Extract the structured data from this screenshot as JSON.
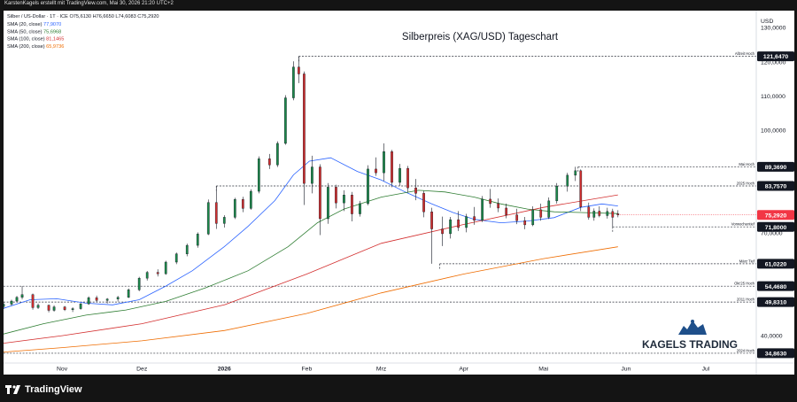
{
  "header": {
    "text": "KarstenKagels erstellt mit TradingView.com, Mai 30, 2026 21:20 UTC+2"
  },
  "legend": {
    "symbol_line": "Silber / US-Dollar · 1T · ICE  O75,6130  H76,6650  L74,6083  C75,2920",
    "sma20": {
      "label": "SMA (20, close)",
      "value": "77,9070",
      "color": "#2962ff"
    },
    "sma50": {
      "label": "SMA (50, close)",
      "value": "75,6968",
      "color": "#2e7d32"
    },
    "sma100": {
      "label": "SMA (100, close)",
      "value": "81,1465",
      "color": "#d32f2f"
    },
    "sma200": {
      "label": "SMA (200, close)",
      "value": "65,9736",
      "color": "#ef6c00"
    }
  },
  "currency": "USD",
  "footer": {
    "brand": "TradingView"
  },
  "watermark": {
    "brand": "KAGELS TRADING"
  },
  "chart_data": {
    "type": "candlestick",
    "title": "Silberpreis (XAG/USD) Tageschart",
    "y_axis": {
      "range": [
        32000,
        135000
      ],
      "ticks": [
        {
          "value": 130000,
          "label": "130,0000"
        },
        {
          "value": 120000,
          "label": "120,0000"
        },
        {
          "value": 110000,
          "label": "110,0000"
        },
        {
          "value": 100000,
          "label": "100,0000"
        },
        {
          "value": 70000,
          "label": "70,0000"
        },
        {
          "value": 50000,
          "label": "50,0000"
        },
        {
          "value": 40000,
          "label": "40,0000"
        }
      ]
    },
    "x_axis": {
      "start_date": "2025-10-10",
      "end_date": "2026-07-20",
      "ticks": [
        {
          "date": "2025-11-01",
          "label": "Nov",
          "bold": false
        },
        {
          "date": "2025-12-01",
          "label": "Dez",
          "bold": false
        },
        {
          "date": "2026-01-01",
          "label": "2026",
          "bold": true
        },
        {
          "date": "2026-02-01",
          "label": "Feb",
          "bold": false
        },
        {
          "date": "2026-03-01",
          "label": "Mrz",
          "bold": false
        },
        {
          "date": "2026-04-01",
          "label": "Apr",
          "bold": false
        },
        {
          "date": "2026-05-01",
          "label": "Mai",
          "bold": false
        },
        {
          "date": "2026-06-01",
          "label": "Jun",
          "bold": false
        },
        {
          "date": "2026-07-01",
          "label": "Jul",
          "bold": false
        }
      ]
    },
    "levels": [
      {
        "name": "Allzeit Hoch",
        "value": 121647,
        "label": "121,6470",
        "from": "2026-01-29"
      },
      {
        "name": "Mai Hoch",
        "value": 89369,
        "label": "89,3690",
        "from": "2026-05-14"
      },
      {
        "name": "2025 Hoch",
        "value": 83757,
        "label": "83,7570",
        "from": "2025-12-29"
      },
      {
        "name": "Vorwochentief",
        "value": 71800,
        "label": "71,8000",
        "from": "2026-05-27"
      },
      {
        "name": "März Tief",
        "value": 61022,
        "label": "61,0220",
        "from": "2026-03-23"
      },
      {
        "name": "Okt'25 Hoch",
        "value": 54468,
        "label": "54,4680",
        "from": "2025-10-10"
      },
      {
        "name": "2011 Hoch",
        "value": 49831,
        "label": "49,8310",
        "from": "2025-10-10"
      },
      {
        "name": "2024 Hoch",
        "value": 34863,
        "label": "34,8630",
        "from": "2025-10-10"
      }
    ],
    "last_price": {
      "value": 75292,
      "label": "75,2920",
      "color": "#f23645"
    },
    "series": [
      {
        "name": "SMA (20, close)",
        "color": "#2962ff",
        "points": [
          [
            "2025-10-10",
            48000
          ],
          [
            "2025-10-20",
            50500
          ],
          [
            "2025-10-30",
            50800
          ],
          [
            "2025-11-10",
            49500
          ],
          [
            "2025-11-20",
            49000
          ],
          [
            "2025-11-30",
            50500
          ],
          [
            "2025-12-10",
            54500
          ],
          [
            "2025-12-20",
            59000
          ],
          [
            "2026-01-01",
            66000
          ],
          [
            "2026-01-10",
            72000
          ],
          [
            "2026-01-20",
            79500
          ],
          [
            "2026-01-27",
            87000
          ],
          [
            "2026-02-02",
            91000
          ],
          [
            "2026-02-10",
            92000
          ],
          [
            "2026-02-20",
            88000
          ],
          [
            "2026-03-01",
            85500
          ],
          [
            "2026-03-10",
            82000
          ],
          [
            "2026-03-20",
            78500
          ],
          [
            "2026-03-28",
            76000
          ],
          [
            "2026-04-05",
            74000
          ],
          [
            "2026-04-15",
            73000
          ],
          [
            "2026-04-25",
            73500
          ],
          [
            "2026-05-05",
            74500
          ],
          [
            "2026-05-15",
            77500
          ],
          [
            "2026-05-23",
            78500
          ],
          [
            "2026-05-29",
            77907
          ]
        ]
      },
      {
        "name": "SMA (50, close)",
        "color": "#2e7d32",
        "points": [
          [
            "2025-10-10",
            40500
          ],
          [
            "2025-10-25",
            43500
          ],
          [
            "2025-11-10",
            46000
          ],
          [
            "2025-11-25",
            47500
          ],
          [
            "2025-12-10",
            50000
          ],
          [
            "2025-12-25",
            54000
          ],
          [
            "2026-01-10",
            59000
          ],
          [
            "2026-01-25",
            66000
          ],
          [
            "2026-02-05",
            73000
          ],
          [
            "2026-02-15",
            77000
          ],
          [
            "2026-03-01",
            80500
          ],
          [
            "2026-03-15",
            82500
          ],
          [
            "2026-03-25",
            82000
          ],
          [
            "2026-04-05",
            80500
          ],
          [
            "2026-04-15",
            78500
          ],
          [
            "2026-04-25",
            77000
          ],
          [
            "2026-05-05",
            76200
          ],
          [
            "2026-05-15",
            76000
          ],
          [
            "2026-05-29",
            75697
          ]
        ]
      },
      {
        "name": "SMA (100, close)",
        "color": "#d32f2f",
        "points": [
          [
            "2025-10-10",
            37800
          ],
          [
            "2025-11-01",
            40000
          ],
          [
            "2025-12-01",
            43500
          ],
          [
            "2026-01-01",
            49000
          ],
          [
            "2026-02-01",
            58000
          ],
          [
            "2026-03-01",
            67000
          ],
          [
            "2026-04-01",
            72500
          ],
          [
            "2026-05-01",
            77500
          ],
          [
            "2026-05-29",
            81147
          ]
        ]
      },
      {
        "name": "SMA (200, close)",
        "color": "#ef6c00",
        "points": [
          [
            "2025-10-10",
            35200
          ],
          [
            "2025-11-01",
            36500
          ],
          [
            "2025-12-01",
            38500
          ],
          [
            "2026-01-01",
            41500
          ],
          [
            "2026-02-01",
            46500
          ],
          [
            "2026-03-01",
            52500
          ],
          [
            "2026-04-01",
            58000
          ],
          [
            "2026-05-01",
            62500
          ],
          [
            "2026-05-29",
            65974
          ]
        ]
      }
    ],
    "candles": [
      {
        "d": "2025-10-10",
        "o": 48500,
        "h": 49800,
        "l": 47800,
        "c": 49200
      },
      {
        "d": "2025-10-13",
        "o": 49200,
        "h": 50500,
        "l": 48800,
        "c": 50100
      },
      {
        "d": "2025-10-15",
        "o": 50100,
        "h": 51600,
        "l": 49900,
        "c": 51200
      },
      {
        "d": "2025-10-17",
        "o": 51200,
        "h": 54468,
        "l": 50600,
        "c": 52000
      },
      {
        "d": "2025-10-21",
        "o": 52000,
        "h": 52300,
        "l": 47600,
        "c": 48200
      },
      {
        "d": "2025-10-23",
        "o": 48200,
        "h": 49400,
        "l": 47800,
        "c": 48900
      },
      {
        "d": "2025-10-27",
        "o": 48900,
        "h": 49100,
        "l": 46800,
        "c": 47400
      },
      {
        "d": "2025-10-29",
        "o": 47400,
        "h": 48900,
        "l": 47000,
        "c": 48400
      },
      {
        "d": "2025-11-02",
        "o": 48400,
        "h": 48700,
        "l": 47200,
        "c": 47600
      },
      {
        "d": "2025-11-05",
        "o": 47600,
        "h": 48300,
        "l": 46900,
        "c": 47900
      },
      {
        "d": "2025-11-08",
        "o": 47900,
        "h": 49600,
        "l": 47600,
        "c": 49300
      },
      {
        "d": "2025-11-11",
        "o": 49300,
        "h": 51500,
        "l": 49000,
        "c": 51100
      },
      {
        "d": "2025-11-14",
        "o": 51100,
        "h": 51700,
        "l": 49800,
        "c": 50300
      },
      {
        "d": "2025-11-18",
        "o": 50300,
        "h": 51000,
        "l": 49400,
        "c": 50700
      },
      {
        "d": "2025-11-22",
        "o": 50700,
        "h": 51600,
        "l": 50000,
        "c": 51200
      },
      {
        "d": "2025-11-26",
        "o": 51200,
        "h": 53800,
        "l": 51000,
        "c": 53400
      },
      {
        "d": "2025-11-30",
        "o": 53400,
        "h": 57200,
        "l": 53000,
        "c": 56800
      },
      {
        "d": "2025-12-03",
        "o": 56800,
        "h": 58900,
        "l": 56100,
        "c": 58500
      },
      {
        "d": "2025-12-07",
        "o": 58500,
        "h": 59400,
        "l": 57300,
        "c": 58100
      },
      {
        "d": "2025-12-10",
        "o": 58100,
        "h": 61900,
        "l": 57800,
        "c": 61500
      },
      {
        "d": "2025-12-14",
        "o": 61500,
        "h": 64300,
        "l": 60900,
        "c": 63900
      },
      {
        "d": "2025-12-18",
        "o": 63900,
        "h": 66900,
        "l": 63200,
        "c": 66400
      },
      {
        "d": "2025-12-22",
        "o": 66400,
        "h": 70200,
        "l": 65700,
        "c": 69700
      },
      {
        "d": "2025-12-26",
        "o": 69700,
        "h": 79800,
        "l": 69400,
        "c": 78900
      },
      {
        "d": "2025-12-29",
        "o": 78900,
        "h": 83757,
        "l": 71200,
        "c": 72800
      },
      {
        "d": "2026-01-01",
        "o": 72800,
        "h": 75200,
        "l": 71600,
        "c": 74600
      },
      {
        "d": "2026-01-05",
        "o": 74600,
        "h": 80300,
        "l": 74100,
        "c": 79800
      },
      {
        "d": "2026-01-08",
        "o": 79800,
        "h": 80600,
        "l": 76100,
        "c": 77200
      },
      {
        "d": "2026-01-11",
        "o": 77200,
        "h": 82800,
        "l": 76800,
        "c": 82200
      },
      {
        "d": "2026-01-14",
        "o": 82200,
        "h": 92400,
        "l": 81600,
        "c": 91700
      },
      {
        "d": "2026-01-18",
        "o": 91700,
        "h": 93100,
        "l": 88700,
        "c": 89900
      },
      {
        "d": "2026-01-21",
        "o": 89900,
        "h": 96800,
        "l": 89300,
        "c": 96200
      },
      {
        "d": "2026-01-24",
        "o": 96200,
        "h": 110300,
        "l": 95800,
        "c": 109500
      },
      {
        "d": "2026-01-27",
        "o": 109500,
        "h": 120200,
        "l": 108800,
        "c": 118500
      },
      {
        "d": "2026-01-29",
        "o": 118500,
        "h": 121647,
        "l": 113800,
        "c": 116500
      },
      {
        "d": "2026-01-31",
        "o": 116500,
        "h": 117200,
        "l": 78200,
        "c": 84500
      },
      {
        "d": "2026-02-03",
        "o": 84500,
        "h": 92600,
        "l": 81600,
        "c": 89300
      },
      {
        "d": "2026-02-06",
        "o": 89300,
        "h": 90100,
        "l": 69400,
        "c": 74200
      },
      {
        "d": "2026-02-09",
        "o": 74200,
        "h": 84600,
        "l": 72700,
        "c": 83400
      },
      {
        "d": "2026-02-12",
        "o": 83400,
        "h": 84100,
        "l": 77200,
        "c": 78800
      },
      {
        "d": "2026-02-15",
        "o": 78800,
        "h": 82500,
        "l": 76400,
        "c": 81100
      },
      {
        "d": "2026-02-18",
        "o": 81100,
        "h": 82000,
        "l": 73400,
        "c": 75600
      },
      {
        "d": "2026-02-21",
        "o": 75600,
        "h": 79400,
        "l": 74800,
        "c": 78600
      },
      {
        "d": "2026-02-24",
        "o": 78600,
        "h": 89800,
        "l": 78100,
        "c": 88700
      },
      {
        "d": "2026-02-27",
        "o": 88700,
        "h": 92100,
        "l": 86700,
        "c": 87600
      },
      {
        "d": "2026-03-02",
        "o": 87600,
        "h": 96200,
        "l": 85200,
        "c": 93800
      },
      {
        "d": "2026-03-05",
        "o": 93800,
        "h": 94300,
        "l": 83400,
        "c": 84800
      },
      {
        "d": "2026-03-08",
        "o": 84800,
        "h": 90200,
        "l": 83800,
        "c": 88900
      },
      {
        "d": "2026-03-11",
        "o": 88900,
        "h": 89600,
        "l": 81900,
        "c": 83200
      },
      {
        "d": "2026-03-14",
        "o": 83200,
        "h": 85800,
        "l": 79600,
        "c": 81600
      },
      {
        "d": "2026-03-17",
        "o": 81600,
        "h": 82300,
        "l": 74600,
        "c": 76200
      },
      {
        "d": "2026-03-20",
        "o": 76200,
        "h": 77400,
        "l": 61022,
        "c": 71200
      },
      {
        "d": "2026-03-24",
        "o": 71200,
        "h": 74800,
        "l": 66200,
        "c": 69800
      },
      {
        "d": "2026-03-27",
        "o": 69800,
        "h": 74700,
        "l": 68400,
        "c": 73900
      },
      {
        "d": "2026-03-30",
        "o": 73900,
        "h": 76400,
        "l": 70600,
        "c": 71600
      },
      {
        "d": "2026-04-02",
        "o": 71600,
        "h": 75600,
        "l": 70200,
        "c": 74800
      },
      {
        "d": "2026-04-05",
        "o": 74800,
        "h": 77600,
        "l": 72400,
        "c": 73700
      },
      {
        "d": "2026-04-08",
        "o": 73700,
        "h": 80800,
        "l": 73200,
        "c": 79900
      },
      {
        "d": "2026-04-11",
        "o": 79900,
        "h": 82900,
        "l": 77400,
        "c": 78600
      },
      {
        "d": "2026-04-14",
        "o": 78600,
        "h": 80100,
        "l": 76100,
        "c": 77300
      },
      {
        "d": "2026-04-17",
        "o": 77300,
        "h": 78600,
        "l": 74300,
        "c": 75300
      },
      {
        "d": "2026-04-21",
        "o": 75300,
        "h": 77100,
        "l": 72600,
        "c": 73600
      },
      {
        "d": "2026-04-24",
        "o": 73600,
        "h": 74700,
        "l": 71100,
        "c": 72400
      },
      {
        "d": "2026-04-27",
        "o": 72400,
        "h": 77800,
        "l": 72000,
        "c": 76800
      },
      {
        "d": "2026-04-30",
        "o": 76800,
        "h": 78600,
        "l": 73600,
        "c": 74600
      },
      {
        "d": "2026-05-03",
        "o": 74600,
        "h": 80400,
        "l": 74100,
        "c": 79400
      },
      {
        "d": "2026-05-06",
        "o": 79400,
        "h": 84600,
        "l": 78600,
        "c": 83700
      },
      {
        "d": "2026-05-10",
        "o": 83700,
        "h": 87600,
        "l": 82100,
        "c": 86900
      },
      {
        "d": "2026-05-13",
        "o": 86900,
        "h": 89369,
        "l": 85200,
        "c": 88200
      },
      {
        "d": "2026-05-15",
        "o": 88200,
        "h": 88600,
        "l": 76400,
        "c": 77600
      },
      {
        "d": "2026-05-18",
        "o": 77600,
        "h": 78900,
        "l": 73900,
        "c": 74600
      },
      {
        "d": "2026-05-20",
        "o": 74600,
        "h": 77200,
        "l": 73600,
        "c": 76400
      },
      {
        "d": "2026-05-22",
        "o": 76400,
        "h": 77800,
        "l": 74600,
        "c": 75100
      },
      {
        "d": "2026-05-25",
        "o": 75100,
        "h": 77400,
        "l": 74200,
        "c": 76300
      },
      {
        "d": "2026-05-27",
        "o": 76300,
        "h": 77100,
        "l": 71800,
        "c": 74600
      },
      {
        "d": "2026-05-29",
        "o": 75613,
        "h": 76665,
        "l": 74608,
        "c": 75292
      }
    ]
  }
}
